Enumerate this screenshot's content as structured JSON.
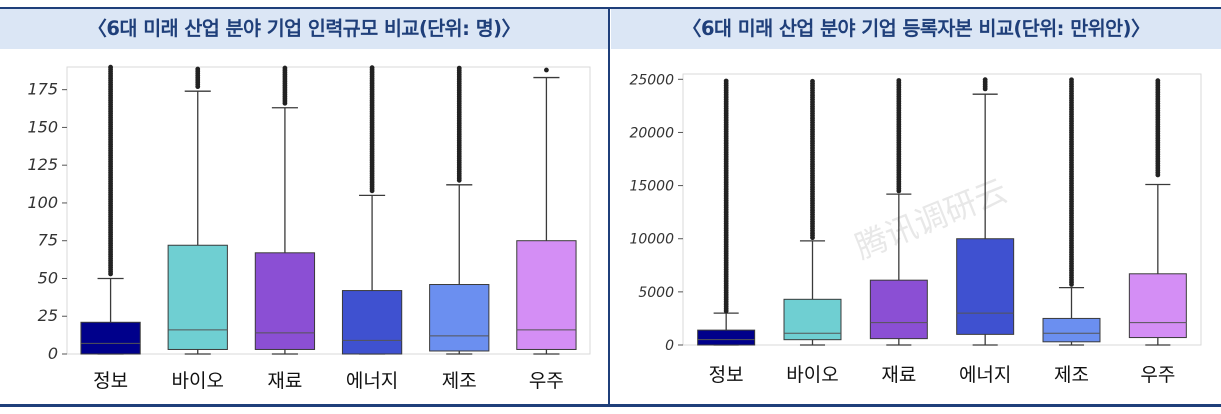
{
  "headers": {
    "left": "〈6대 미래 산업 분야 기업 인력규모 비교(단위: 명)〉",
    "right": "〈6대 미래 산업 분야 기업 등록자본 비교(단위: 만위안)〉"
  },
  "watermark": "腾讯调研云",
  "colors": {
    "header_bg": "#dbe6f5",
    "header_text": "#1f3f7a",
    "rule": "#1f3f7a"
  },
  "chart_data": [
    {
      "type": "box",
      "title": "〈6대 미래 산업 분야 기업 인력규모 비교(단위: 명)〉",
      "categories": [
        "정보",
        "바이오",
        "재료",
        "에너지",
        "제조",
        "우주"
      ],
      "ylim": [
        0,
        190
      ],
      "yticks": [
        0,
        25,
        50,
        75,
        100,
        125,
        150,
        175
      ],
      "ytick_labels": [
        "0",
        "25",
        "50",
        "75",
        "100",
        "125",
        "150",
        "175"
      ],
      "grid": false,
      "boxes": [
        {
          "name": "정보",
          "color": "#00008b",
          "whisker_low": 0,
          "q1": 0,
          "median": 7,
          "q3": 21,
          "whisker_high": 50,
          "outliers_from": 53,
          "outliers_to": 190
        },
        {
          "name": "바이오",
          "color": "#6fcfd2",
          "whisker_low": 0,
          "q1": 3,
          "median": 16,
          "q3": 72,
          "whisker_high": 174,
          "outliers_from": 177,
          "outliers_to": 190
        },
        {
          "name": "재료",
          "color": "#8b4fd4",
          "whisker_low": 0,
          "q1": 3,
          "median": 14,
          "q3": 67,
          "whisker_high": 163,
          "outliers_from": 166,
          "outliers_to": 190
        },
        {
          "name": "에너지",
          "color": "#3f51d0",
          "whisker_low": 0,
          "q1": 0,
          "median": 9,
          "q3": 42,
          "whisker_high": 105,
          "outliers_from": 108,
          "outliers_to": 190
        },
        {
          "name": "제조",
          "color": "#6b8ff0",
          "whisker_low": 0,
          "q1": 2,
          "median": 12,
          "q3": 46,
          "whisker_high": 112,
          "outliers_from": 115,
          "outliers_to": 190
        },
        {
          "name": "우주",
          "color": "#d48ef5",
          "whisker_low": 0,
          "q1": 3,
          "median": 16,
          "q3": 75,
          "whisker_high": 183,
          "outliers_from": 188,
          "outliers_to": 188
        }
      ]
    },
    {
      "type": "box",
      "title": "〈6대 미래 산업 분야 기업 등록자본 비교(단위: 만위안)〉",
      "categories": [
        "정보",
        "바이오",
        "재료",
        "에너지",
        "제조",
        "우주"
      ],
      "ylim": [
        0,
        25500
      ],
      "yticks": [
        0,
        5000,
        10000,
        15000,
        20000,
        25000
      ],
      "ytick_labels": [
        "0",
        "5000",
        "10000",
        "15000",
        "20000",
        "25000"
      ],
      "grid": false,
      "boxes": [
        {
          "name": "정보",
          "color": "#00008b",
          "whisker_low": 0,
          "q1": 0,
          "median": 500,
          "q3": 1400,
          "whisker_high": 3000,
          "outliers_from": 3200,
          "outliers_to": 25000
        },
        {
          "name": "바이오",
          "color": "#6fcfd2",
          "whisker_low": 0,
          "q1": 500,
          "median": 1100,
          "q3": 4300,
          "whisker_high": 9800,
          "outliers_from": 10100,
          "outliers_to": 25000
        },
        {
          "name": "재료",
          "color": "#8b4fd4",
          "whisker_low": 0,
          "q1": 600,
          "median": 2100,
          "q3": 6100,
          "whisker_high": 14200,
          "outliers_from": 14500,
          "outliers_to": 25000
        },
        {
          "name": "에너지",
          "color": "#3f51d0",
          "whisker_low": 0,
          "q1": 1000,
          "median": 3000,
          "q3": 10000,
          "whisker_high": 23600,
          "outliers_from": 24100,
          "outliers_to": 25000
        },
        {
          "name": "제조",
          "color": "#6b8ff0",
          "whisker_low": 0,
          "q1": 300,
          "median": 1100,
          "q3": 2500,
          "whisker_high": 5400,
          "outliers_from": 5700,
          "outliers_to": 25000
        },
        {
          "name": "우주",
          "color": "#d48ef5",
          "whisker_low": 0,
          "q1": 700,
          "median": 2100,
          "q3": 6700,
          "whisker_high": 15100,
          "outliers_from": 16000,
          "outliers_to": 25000
        }
      ]
    }
  ]
}
